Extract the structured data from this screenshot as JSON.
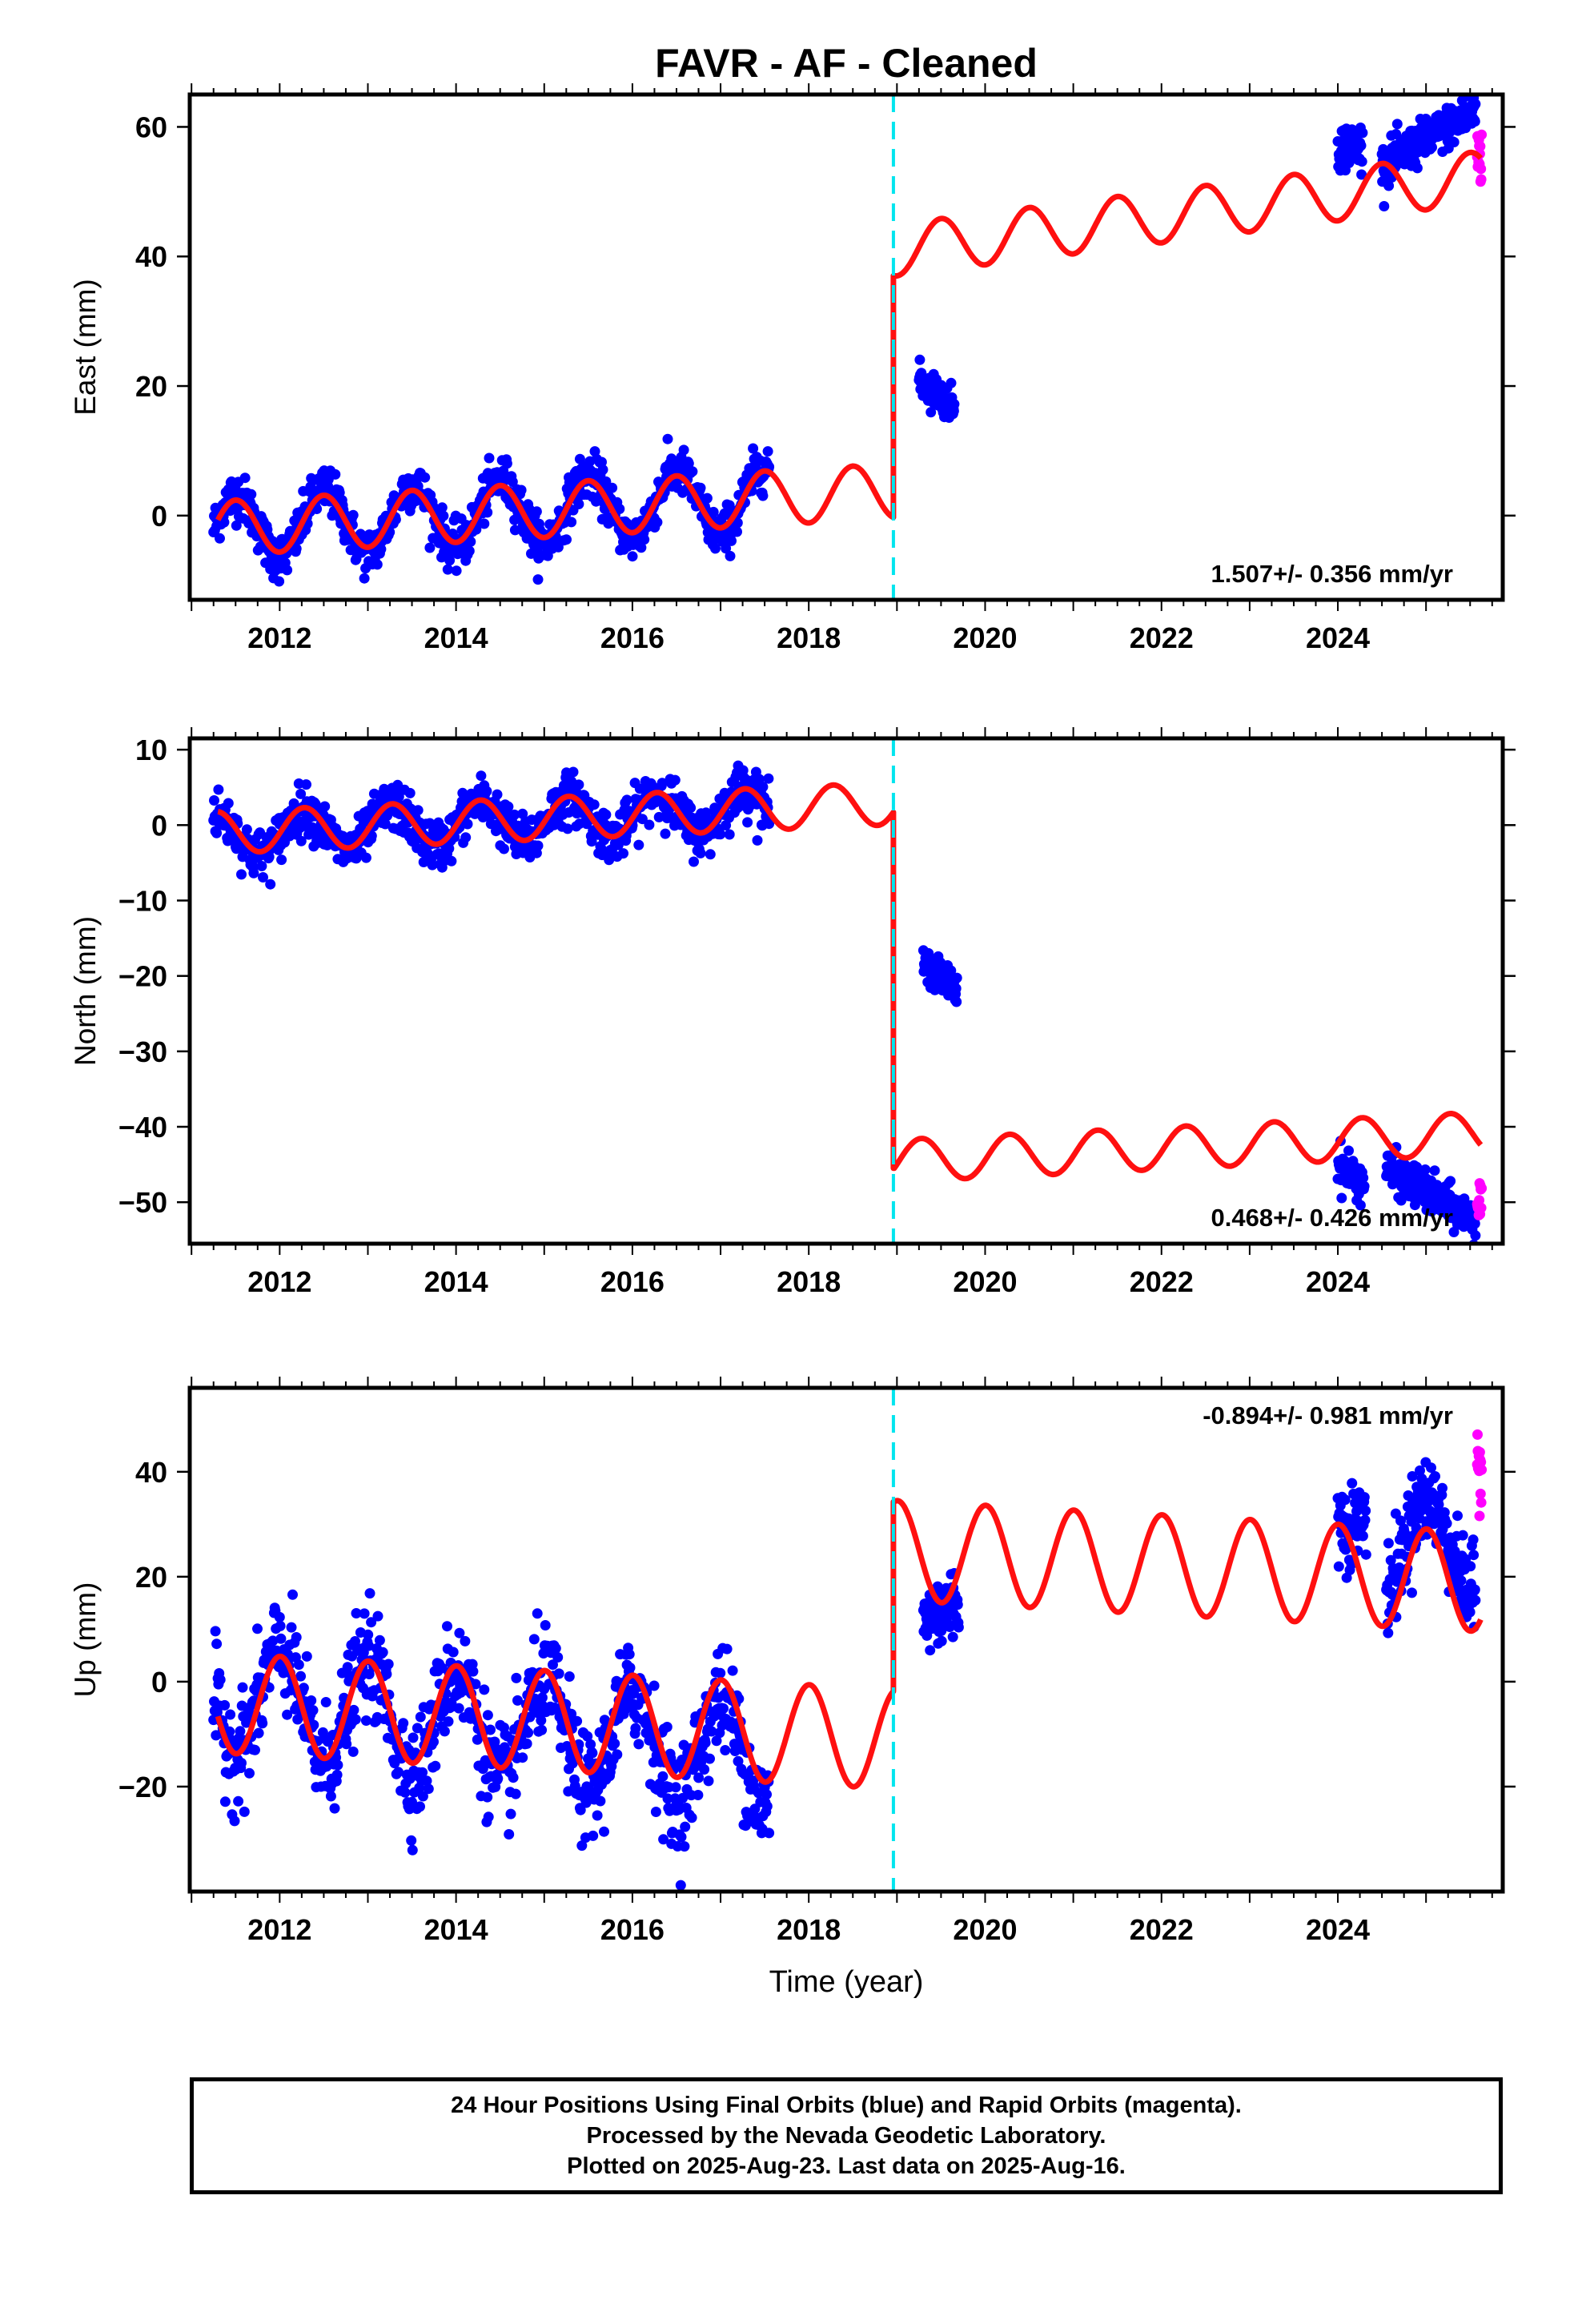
{
  "title": "FAVR  - AF - Cleaned",
  "colors": {
    "final_orbits": "#0000ff",
    "rapid_orbits": "#ff00ff",
    "model": "#ff1010",
    "equipment_change": "#00e5ee"
  },
  "footer": {
    "line1": "24 Hour Positions Using Final Orbits (blue) and Rapid Orbits (magenta).",
    "line2": "Processed by the Nevada Geodetic Laboratory.",
    "line3": "Plotted on 2025-Aug-23. Last data on 2025-Aug-16."
  },
  "chart_data": [
    {
      "type": "scatter",
      "panel": "east",
      "title": "FAVR  - AF - Cleaned",
      "ylabel": "East (mm)",
      "xlabel": "",
      "xlim": [
        2010.98,
        2025.87
      ],
      "ylim": [
        -13,
        65
      ],
      "yticks": [
        0,
        20,
        40,
        60
      ],
      "xticks": [
        2012,
        2014,
        2016,
        2018,
        2020,
        2022,
        2024
      ],
      "rate_label": "1.507+/- 0.356 mm/yr",
      "rate_position": "bottom-right",
      "equipment_change": 2018.96,
      "model": {
        "pre": {
          "x0": 2011.25,
          "y0": -2.0,
          "rate": 0.75,
          "amp": 4.2,
          "phase": 0.0
        },
        "post": {
          "x0": 2019.0,
          "y0": 41.0,
          "rate": 1.7,
          "amp": 4.0,
          "phase": 0.0
        },
        "x": [
          2011.3,
          2018.96
        ],
        "x_post": [
          2018.97,
          2025.62
        ]
      },
      "series": [
        {
          "name": "Final Orbits (blue)",
          "color": "#0000ff",
          "segments": [
            {
              "x": [
                2011.25,
                2017.55
              ],
              "base": -2.0,
              "rate": 0.75,
              "amp": 5.0,
              "phase": 0.0,
              "noise": 1.8,
              "n": 900
            },
            {
              "x": [
                2019.25,
                2019.65
              ],
              "base": 21.0,
              "rate": -10.0,
              "amp": 0.0,
              "phase": 0.0,
              "noise": 1.3,
              "n": 90
            },
            {
              "x": [
                2024.0,
                2024.28
              ],
              "base": 57.0,
              "rate": 0.0,
              "amp": 0.0,
              "phase": 0.0,
              "noise": 1.8,
              "n": 50
            },
            {
              "x": [
                2024.5,
                2025.56
              ],
              "base": 54.0,
              "rate": 8.0,
              "amp": 0.0,
              "phase": 0.0,
              "noise": 1.6,
              "n": 220
            }
          ]
        },
        {
          "name": "Rapid Orbits (magenta)",
          "color": "#ff00ff",
          "segments": [
            {
              "x": [
                2025.58,
                2025.63
              ],
              "base": 56.0,
              "rate": 0.0,
              "amp": 0.0,
              "phase": 0.0,
              "noise": 2.6,
              "n": 14
            }
          ]
        }
      ]
    },
    {
      "type": "scatter",
      "panel": "north",
      "ylabel": "North (mm)",
      "xlabel": "",
      "xlim": [
        2010.98,
        2025.87
      ],
      "ylim": [
        -55.5,
        11.5
      ],
      "yticks": [
        10,
        0,
        -10,
        -20,
        -30,
        -40,
        -50
      ],
      "xticks": [
        2012,
        2014,
        2016,
        2018,
        2020,
        2022,
        2024
      ],
      "rate_label": "0.468+/- 0.426 mm/yr",
      "rate_position": "bottom-right",
      "equipment_change": 2018.96,
      "model": {
        "pre": {
          "x0": 2011.25,
          "y0": -1.0,
          "rate": 0.5,
          "amp": 2.8,
          "phase": 1.4
        },
        "post": {
          "x0": 2019.0,
          "y0": -44.5,
          "rate": 0.55,
          "amp": 2.8,
          "phase": 1.4
        },
        "x": [
          2011.3,
          2018.96
        ],
        "x_post": [
          2018.97,
          2025.62
        ]
      },
      "series": [
        {
          "name": "Final Orbits (blue)",
          "color": "#0000ff",
          "segments": [
            {
              "x": [
                2011.25,
                2017.55
              ],
              "base": -1.5,
              "rate": 0.6,
              "amp": 2.8,
              "phase": 1.4,
              "noise": 1.6,
              "n": 900
            },
            {
              "x": [
                2019.3,
                2019.68
              ],
              "base": -18.5,
              "rate": -8.0,
              "amp": 0.0,
              "phase": 0.0,
              "noise": 1.1,
              "n": 80
            },
            {
              "x": [
                2024.0,
                2024.3
              ],
              "base": -45.0,
              "rate": -8.0,
              "amp": 0.0,
              "phase": 0.0,
              "noise": 1.4,
              "n": 50
            },
            {
              "x": [
                2024.55,
                2025.56
              ],
              "base": -45.5,
              "rate": -7.0,
              "amp": 0.0,
              "phase": 0.0,
              "noise": 1.3,
              "n": 200
            }
          ]
        },
        {
          "name": "Rapid Orbits (magenta)",
          "color": "#ff00ff",
          "segments": [
            {
              "x": [
                2025.58,
                2025.63
              ],
              "base": -50.0,
              "rate": 0.0,
              "amp": 0.0,
              "phase": 0.0,
              "noise": 1.5,
              "n": 12
            }
          ]
        }
      ]
    },
    {
      "type": "scatter",
      "panel": "up",
      "ylabel": "Up (mm)",
      "xlabel": "Time (year)",
      "xlim": [
        2010.98,
        2025.87
      ],
      "ylim": [
        -40,
        56
      ],
      "yticks": [
        40,
        20,
        0,
        -20
      ],
      "xticks": [
        2012,
        2014,
        2016,
        2018,
        2020,
        2022,
        2024
      ],
      "rate_label": "-0.894+/- 0.981 mm/yr",
      "rate_position": "top-right",
      "equipment_change": 2018.96,
      "model": {
        "pre": {
          "x0": 2011.25,
          "y0": -4.0,
          "rate": -0.9,
          "amp": 9.5,
          "phase": 3.1
        },
        "post": {
          "x0": 2019.0,
          "y0": 25.0,
          "rate": -0.9,
          "amp": 9.5,
          "phase": 3.1
        },
        "x": [
          2011.3,
          2018.96
        ],
        "x_post": [
          2018.97,
          2025.62
        ]
      },
      "series": [
        {
          "name": "Final Orbits (blue)",
          "color": "#0000ff",
          "segments": [
            {
              "x": [
                2011.25,
                2017.55
              ],
              "base": -3.0,
              "rate": -1.8,
              "amp": 10.0,
              "phase": 3.1,
              "noise": 5.0,
              "n": 900
            },
            {
              "x": [
                2019.3,
                2019.7
              ],
              "base": 12.0,
              "rate": 8.0,
              "amp": 0.0,
              "phase": 0.0,
              "noise": 3.5,
              "n": 80
            },
            {
              "x": [
                2024.0,
                2024.32
              ],
              "base": 30.0,
              "rate": 0.0,
              "amp": 0.0,
              "phase": 0.0,
              "noise": 4.0,
              "n": 55
            },
            {
              "x": [
                2024.55,
                2025.56
              ],
              "base": 26.0,
              "rate": 0.0,
              "amp": 9.0,
              "phase": 3.1,
              "noise": 4.0,
              "n": 200
            }
          ]
        },
        {
          "name": "Rapid Orbits (magenta)",
          "color": "#ff00ff",
          "segments": [
            {
              "x": [
                2025.58,
                2025.63
              ],
              "base": 42.0,
              "rate": 0.0,
              "amp": 0.0,
              "phase": 0.0,
              "noise": 4.5,
              "n": 14
            }
          ]
        }
      ]
    }
  ]
}
